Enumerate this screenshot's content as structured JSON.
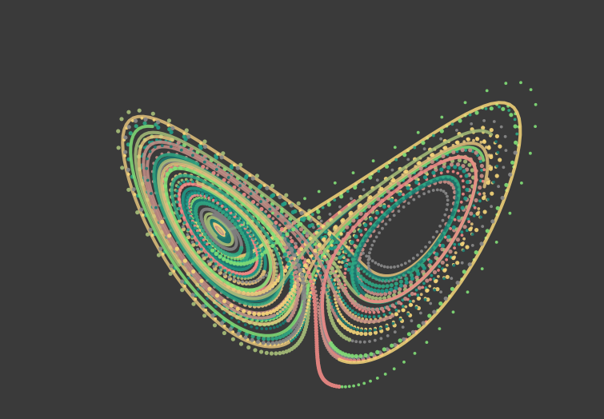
{
  "scene": {
    "subject": "lorenz-attractor",
    "background_color": "#3a3a3a",
    "palette": [
      "#f08a86",
      "#82e078",
      "#1f9e8a",
      "#e3c27c",
      "#c89088",
      "#f7d77a",
      "#1a7a72",
      "#a8c07a",
      "#8a8a8a",
      "#2ea884"
    ]
  }
}
